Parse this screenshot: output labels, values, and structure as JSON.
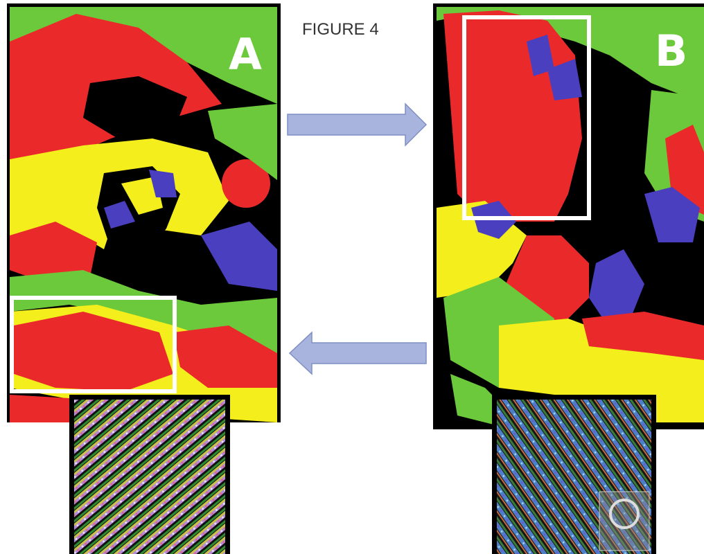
{
  "figure": {
    "title": "FIGURE 4",
    "panels": [
      {
        "label": "A"
      },
      {
        "label": "B"
      }
    ]
  }
}
